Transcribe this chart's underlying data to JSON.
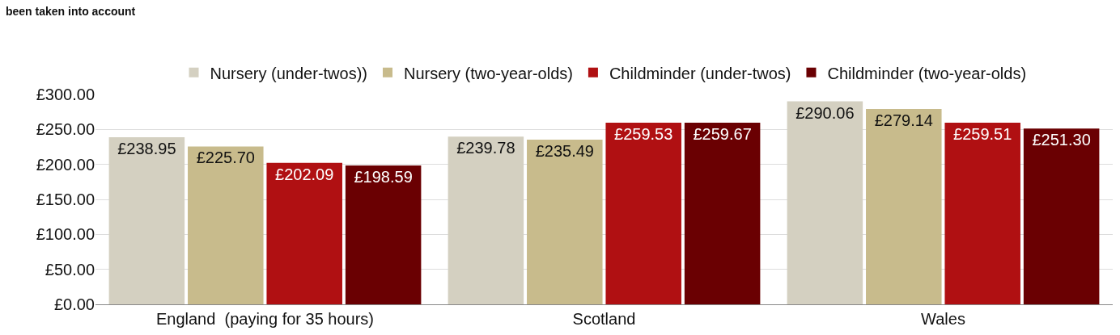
{
  "chart_data": {
    "type": "bar",
    "subtitle": "been taken into account",
    "categories": [
      "England  (paying for 35 hours)",
      "Scotland",
      "Wales"
    ],
    "series": [
      {
        "name": "Nursery (under-twos))",
        "color": "#d4d0c1",
        "values": [
          238.95,
          239.78,
          290.06
        ],
        "value_labels": [
          "£238.95",
          "£239.78",
          "£290.06"
        ]
      },
      {
        "name": "Nursery (two-year-olds)",
        "color": "#c8bb8c",
        "values": [
          225.7,
          235.49,
          279.14
        ],
        "value_labels": [
          "£225.70",
          "£235.49",
          "£279.14"
        ]
      },
      {
        "name": "Childminder (under-twos)",
        "color": "#b01012",
        "values": [
          202.09,
          259.53,
          259.51
        ],
        "value_labels": [
          "£202.09",
          "£259.53",
          "£259.51"
        ]
      },
      {
        "name": "Childminder (two-year-olds)",
        "color": "#6a0002",
        "values": [
          198.59,
          259.67,
          251.3
        ],
        "value_labels": [
          "£198.59",
          "£259.67",
          "£251.30"
        ]
      }
    ],
    "ylim": [
      0,
      300
    ],
    "yticks": [
      {
        "value": 0,
        "label": "£0.00"
      },
      {
        "value": 50,
        "label": "£50.00"
      },
      {
        "value": 100,
        "label": "£100.00"
      },
      {
        "value": 150,
        "label": "£150.00"
      },
      {
        "value": 200,
        "label": "£200.00"
      },
      {
        "value": 250,
        "label": "£250.00"
      },
      {
        "value": 300,
        "label": "£300.00"
      }
    ],
    "grid": "y",
    "legend": "top"
  }
}
